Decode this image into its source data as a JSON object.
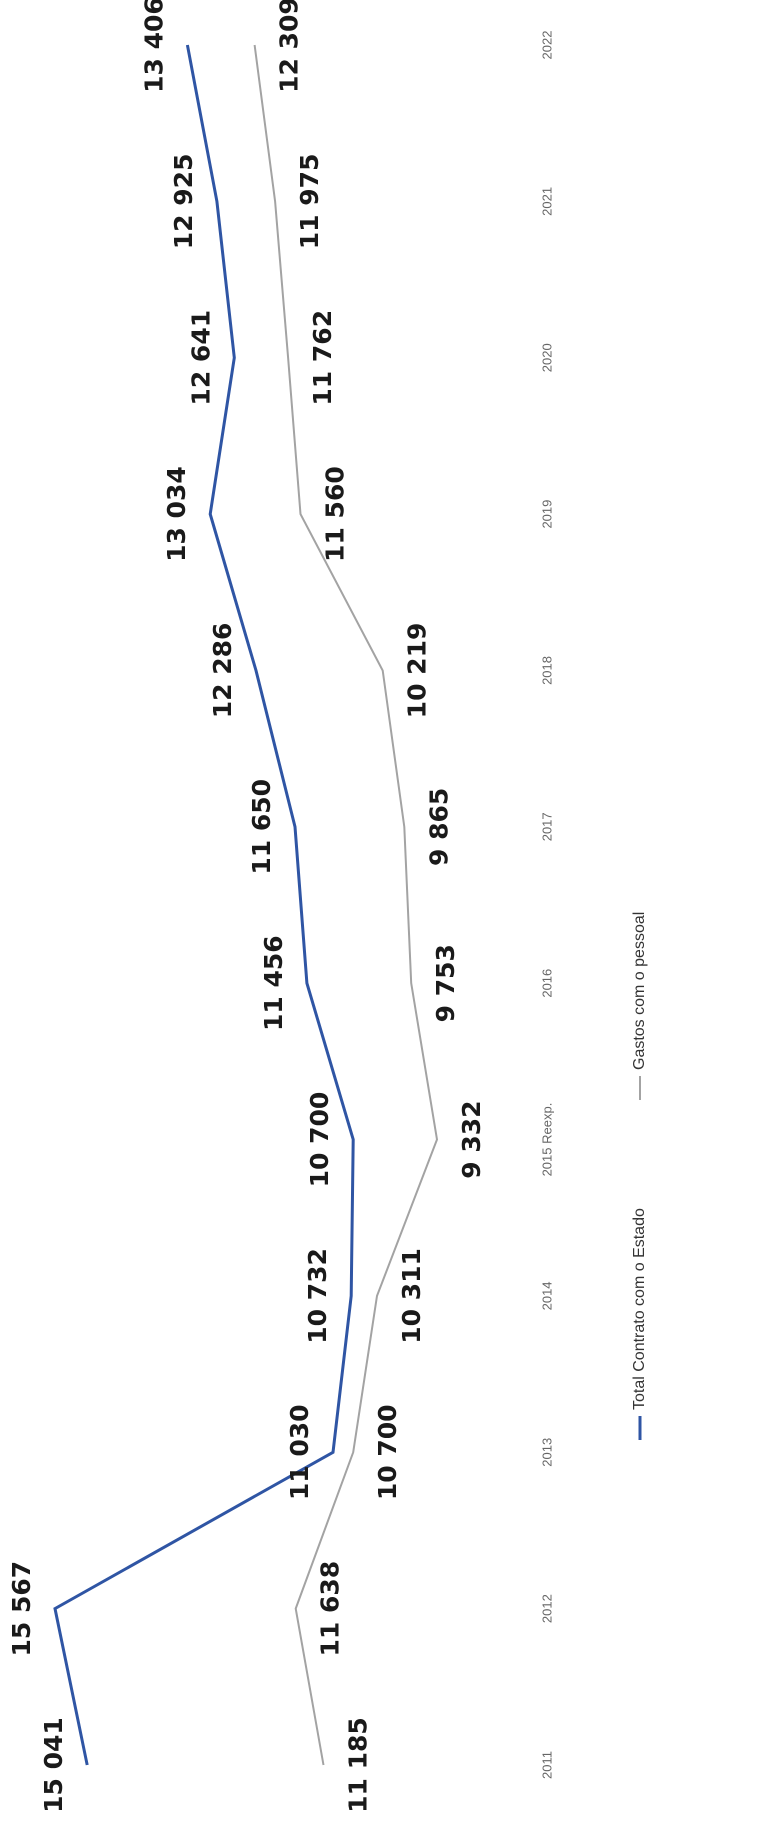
{
  "chart_data": {
    "type": "line",
    "categories": [
      "2011",
      "2012",
      "2013",
      "2014",
      "2015 Reexp.",
      "2016",
      "2017",
      "2018",
      "2019",
      "2020",
      "2021",
      "2022"
    ],
    "series": [
      {
        "name": "Total Contrato com o Estado",
        "color": "#2f55a4",
        "values": [
          15041,
          15567,
          11030,
          10732,
          10700,
          11456,
          11650,
          12286,
          13034,
          12641,
          12925,
          13406
        ],
        "value_labels": [
          "15 041",
          "15 567",
          "11 030",
          "10 732",
          "10 700",
          "11 456",
          "11 650",
          "12 286",
          "13 034",
          "12 641",
          "12 925",
          "13 406"
        ]
      },
      {
        "name": "Gastos com o pessoal",
        "color": "#a3a3a3",
        "values": [
          11185,
          11638,
          10700,
          10311,
          9332,
          9753,
          9865,
          10219,
          11560,
          11762,
          11975,
          12309
        ],
        "value_labels": [
          "11 185",
          "11 638",
          "10 700",
          "10 311",
          "9 332",
          "9 753",
          "9 865",
          "10 219",
          "11 560",
          "11 762",
          "11 975",
          "12 309"
        ]
      }
    ]
  }
}
